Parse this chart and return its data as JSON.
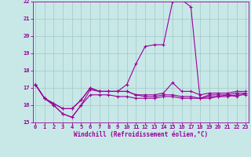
{
  "xlabel": "Windchill (Refroidissement éolien,°C)",
  "bg_color": "#c8e8e8",
  "line_color": "#990099",
  "grid_color": "#aacccc",
  "xmin": 0,
  "xmax": 23,
  "ymin": 15,
  "ymax": 22,
  "series": [
    [
      17.2,
      16.4,
      16.0,
      15.5,
      15.3,
      16.0,
      16.6,
      16.6,
      16.6,
      16.5,
      16.5,
      16.4,
      16.4,
      16.4,
      16.5,
      16.5,
      16.4,
      16.4,
      16.4,
      16.5,
      16.5,
      16.5,
      16.6,
      16.6
    ],
    [
      17.2,
      16.4,
      16.0,
      15.5,
      15.3,
      16.0,
      16.9,
      16.8,
      16.8,
      16.8,
      17.2,
      18.4,
      19.4,
      19.5,
      19.5,
      22.0,
      22.1,
      21.7,
      16.4,
      16.4,
      16.5,
      16.6,
      16.5,
      16.7
    ],
    [
      17.2,
      16.4,
      16.1,
      15.8,
      15.8,
      16.3,
      17.0,
      16.8,
      16.8,
      16.8,
      16.8,
      16.6,
      16.5,
      16.5,
      16.6,
      16.6,
      16.5,
      16.5,
      16.4,
      16.6,
      16.6,
      16.6,
      16.7,
      16.7
    ],
    [
      17.2,
      16.4,
      16.1,
      15.8,
      15.8,
      16.3,
      17.0,
      16.8,
      16.8,
      16.8,
      16.8,
      16.6,
      16.6,
      16.6,
      16.7,
      17.3,
      16.8,
      16.8,
      16.6,
      16.7,
      16.7,
      16.7,
      16.8,
      16.8
    ]
  ]
}
